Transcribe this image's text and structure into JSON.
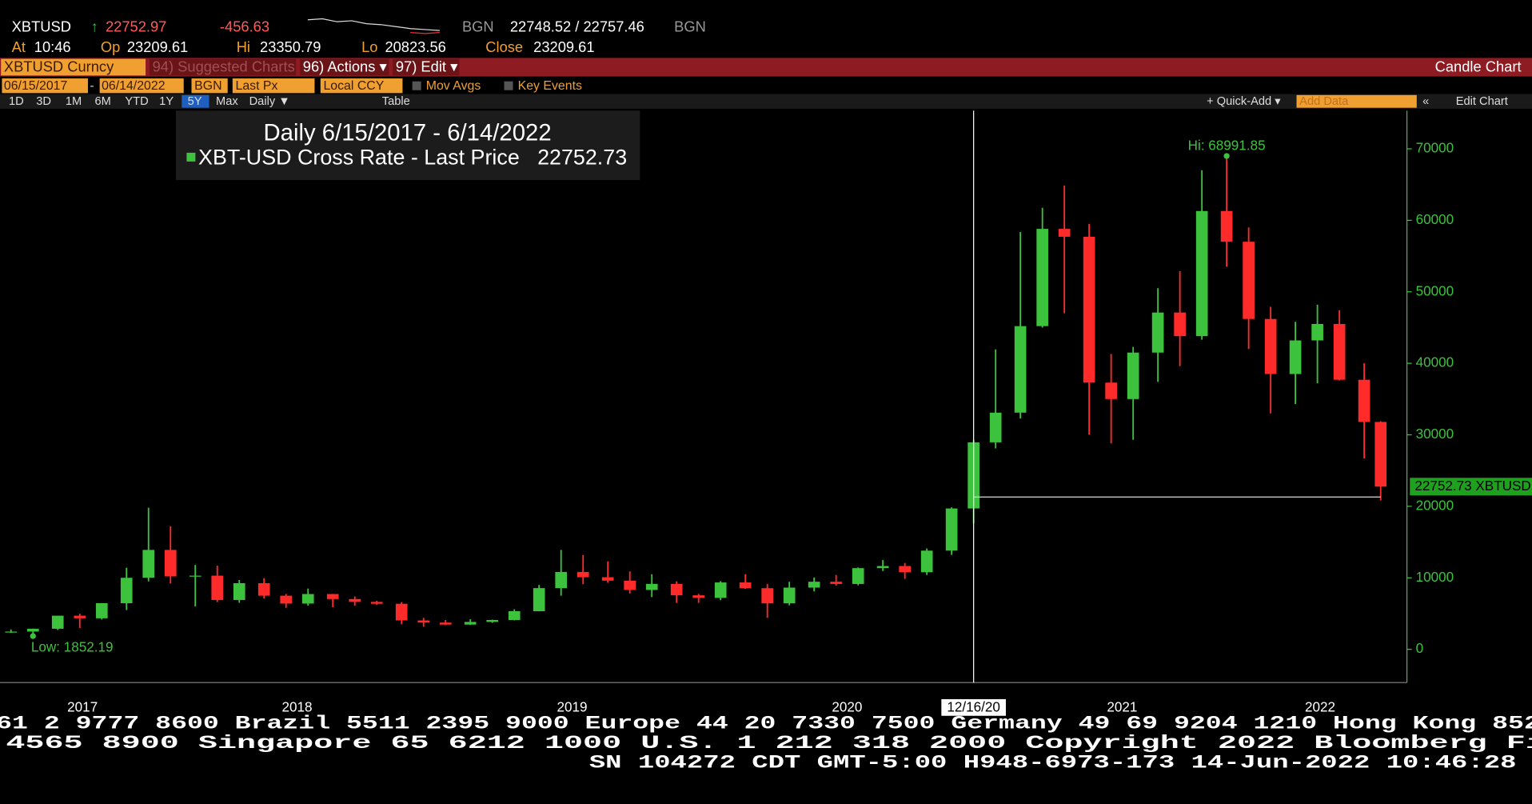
{
  "header": {
    "ticker": "XBTUSD",
    "arrow": "↑",
    "last": 22752.97,
    "change": -456.63,
    "source1": "BGN",
    "bid_ask": "22748.52 / 22757.46",
    "source2": "BGN",
    "at_label": "At",
    "at_value": "10:46",
    "open_label": "Op",
    "open_value": 23209.61,
    "high_label": "Hi",
    "high_value": 23350.79,
    "low_label": "Lo",
    "low_value": 20823.56,
    "close_label": "Close",
    "close_value": 23209.61
  },
  "toolbar": {
    "security": "XBTUSD Curncy",
    "suggested": "94) Suggested Charts",
    "actions": "96) Actions ▾",
    "edit": "97) Edit ▾",
    "chart_type": "Candle Chart",
    "start_date": "06/15/2017",
    "end_date": "06/14/2022",
    "source": "BGN",
    "field": "Last Px",
    "currency": "Local CCY",
    "mov_avgs": "Mov Avgs",
    "key_events": "Key Events",
    "periods": [
      "1D",
      "3D",
      "1M",
      "6M",
      "YTD",
      "1Y",
      "5Y",
      "Max"
    ],
    "frequency": "Daily ▼",
    "table": "Table",
    "quick_add": "+ Quick-Add ▾",
    "add_data": "Add Data",
    "edit_chart": "Edit Chart"
  },
  "chart_data": {
    "type": "candlestick",
    "legend": {
      "title": "Daily 6/15/2017 - 6/14/2022",
      "series_name": "XBT-USD Cross Rate - Last Price",
      "last_price": 22752.73
    },
    "x": [
      2017.46,
      2017.54,
      2017.63,
      2017.71,
      2017.79,
      2017.88,
      2017.96,
      2018.04,
      2018.13,
      2018.21,
      2018.29,
      2018.38,
      2018.46,
      2018.54,
      2018.63,
      2018.71,
      2018.79,
      2018.88,
      2018.96,
      2019.04,
      2019.13,
      2019.21,
      2019.29,
      2019.38,
      2019.46,
      2019.54,
      2019.63,
      2019.71,
      2019.79,
      2019.88,
      2019.96,
      2020.04,
      2020.13,
      2020.21,
      2020.29,
      2020.38,
      2020.46,
      2020.54,
      2020.63,
      2020.71,
      2020.79,
      2020.88,
      2020.96,
      2021.04,
      2021.13,
      2021.21,
      2021.29,
      2021.38,
      2021.46,
      2021.54,
      2021.63,
      2021.71,
      2021.79,
      2021.88,
      2021.96,
      2022.04,
      2022.13,
      2022.21,
      2022.29,
      2022.38,
      2022.44
    ],
    "open": [
      2450,
      2480,
      2875,
      4700,
      4340,
      6450,
      10000,
      13900,
      10200,
      10300,
      6900,
      9250,
      7500,
      6400,
      7730,
      7030,
      6630,
      6370,
      4040,
      3740,
      3460,
      3830,
      4100,
      5330,
      8560,
      10820,
      10080,
      9600,
      8300,
      9150,
      7550,
      7190,
      9350,
      8550,
      6430,
      8630,
      9450,
      9140,
      11350,
      11650,
      10780,
      13800,
      19700,
      28950,
      33100,
      45200,
      58800,
      57700,
      37300,
      35000,
      41500,
      47100,
      43800,
      61300,
      57000,
      46200,
      38500,
      43200,
      45500,
      37700,
      31800
    ],
    "high": [
      2780,
      2900,
      4700,
      4980,
      6470,
      11400,
      19800,
      17200,
      11800,
      11700,
      9700,
      9950,
      7750,
      8500,
      7750,
      7400,
      6800,
      6600,
      4400,
      4100,
      4200,
      4150,
      5600,
      9000,
      13900,
      13200,
      12300,
      10900,
      10500,
      9500,
      7750,
      9550,
      10500,
      9150,
      9450,
      10050,
      10400,
      11450,
      12480,
      12080,
      14100,
      19860,
      29300,
      41950,
      58350,
      61750,
      64850,
      59500,
      41300,
      42300,
      50500,
      52900,
      67000,
      68991.85,
      59000,
      47900,
      45800,
      48200,
      47400,
      40000,
      31900
    ],
    "low": [
      2300,
      1852.19,
      2700,
      2970,
      4160,
      5500,
      9500,
      9200,
      6000,
      6600,
      6500,
      7100,
      5800,
      6100,
      5880,
      6100,
      6200,
      3500,
      3150,
      3400,
      3400,
      3700,
      4050,
      5300,
      7500,
      9100,
      9300,
      7800,
      7300,
      6500,
      6500,
      6870,
      8450,
      4400,
      6150,
      8100,
      8900,
      8950,
      10950,
      9850,
      10400,
      13200,
      17600,
      28100,
      32300,
      45000,
      47000,
      30000,
      28800,
      29300,
      37400,
      39600,
      43300,
      53500,
      42000,
      33000,
      34300,
      37200,
      37600,
      26700,
      20823.56
    ],
    "close": [
      2480,
      2875,
      4700,
      4340,
      6450,
      10000,
      13900,
      10200,
      10300,
      6900,
      9250,
      7500,
      6400,
      7730,
      7030,
      6630,
      6370,
      4040,
      3740,
      3460,
      3830,
      4100,
      5330,
      8560,
      10820,
      10080,
      9600,
      8300,
      9150,
      7550,
      7190,
      9350,
      8550,
      6430,
      8630,
      9450,
      9140,
      11350,
      11650,
      10780,
      13800,
      19700,
      28950,
      33100,
      45200,
      58800,
      57700,
      37300,
      35000,
      41500,
      47100,
      43800,
      61300,
      57000,
      46200,
      38500,
      43200,
      45500,
      37700,
      31800,
      22752.73
    ],
    "up_color": "#3cc23c",
    "down_color": "#ff2a2a",
    "xlim": [
      2017.42,
      2022.5
    ],
    "xticks": [
      {
        "value": 2017.72,
        "label": "2017"
      },
      {
        "value": 2018.5,
        "label": "2018"
      },
      {
        "value": 2019.5,
        "label": "2019"
      },
      {
        "value": 2020.5,
        "label": "2020"
      },
      {
        "value": 2021.5,
        "label": "2021"
      },
      {
        "value": 2022.22,
        "label": "2022"
      }
    ],
    "ylim": [
      -4650,
      75330
    ],
    "yticks": [
      0,
      10000,
      20000,
      30000,
      40000,
      50000,
      60000,
      70000
    ],
    "hi_label": "Hi: 68991.85",
    "low_label": "Low: 1852.19",
    "last_label": "22752.73 XBTUSD",
    "crosshair": {
      "label": "12/16/20",
      "x": 2020.96,
      "y": 21300
    }
  },
  "ticker": {
    "line1": "61 2 9777 8600 Brazil 5511 2395 9000 Europe 44 20 7330 7500 Germany 49 69 9204 1210 Hong Kong 852",
    "line2": "4565 8900        Singapore 65 6212 1000        U.S. 1 212 318 2000        Copyright 2022 Bloomberg Fi",
    "line3": "SN 104272 CDT  GMT-5:00 H948-6973-173 14-Jun-2022 10:46:28"
  }
}
